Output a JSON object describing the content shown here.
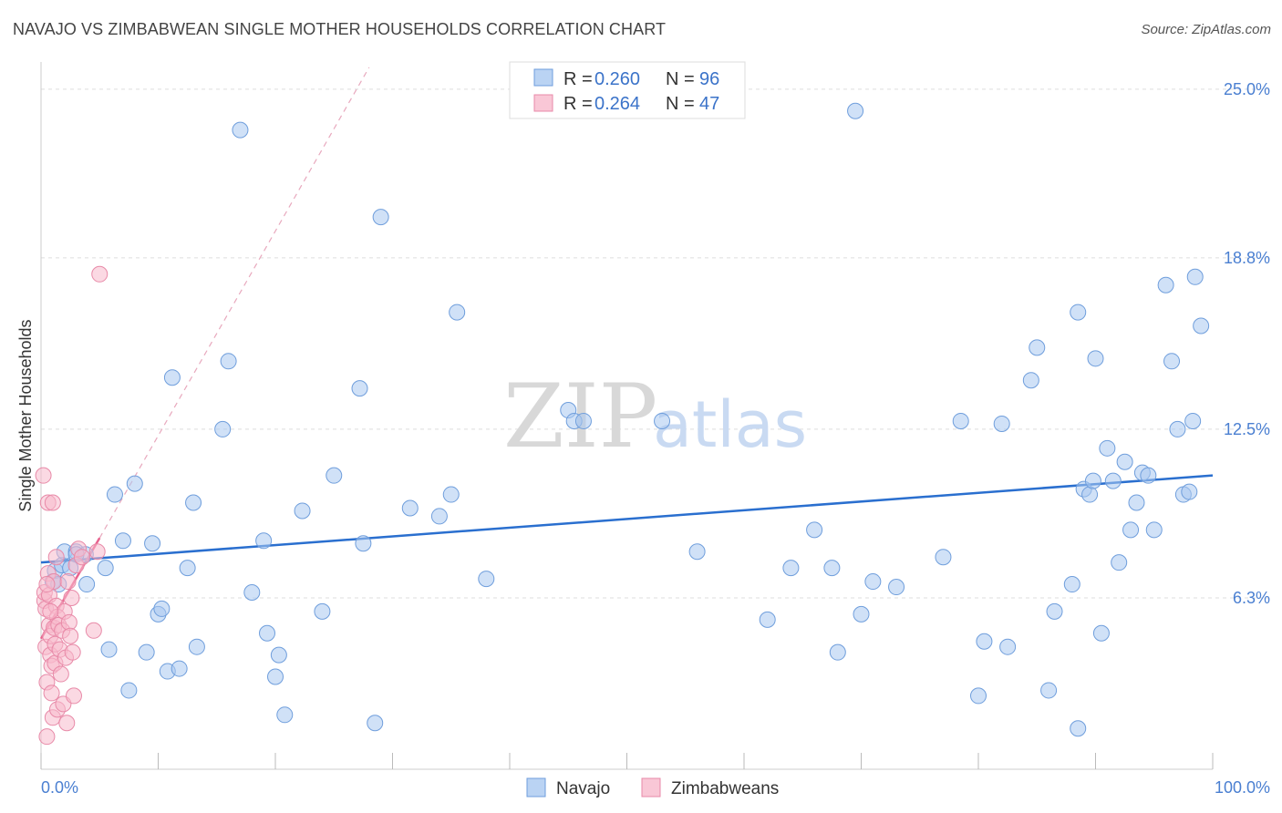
{
  "title": "NAVAJO VS ZIMBABWEAN SINGLE MOTHER HOUSEHOLDS CORRELATION CHART",
  "source": "Source: ZipAtlas.com",
  "watermark": {
    "zip": "ZIP",
    "atlas": "atlas"
  },
  "colors": {
    "navajo_fill": "#a9c8f0",
    "navajo_stroke": "#6f9edc",
    "navajo_line": "#2a6fcf",
    "zimb_fill": "#f7b9cc",
    "zimb_stroke": "#e88aa8",
    "zimb_line": "#e8648f",
    "grid": "#dddddd",
    "tick_label": "#4a7fd1"
  },
  "legend": {
    "items": [
      {
        "r_label": "R = ",
        "r_value": "0.260",
        "n_label": "N = ",
        "n_value": "96"
      },
      {
        "r_label": "R = ",
        "r_value": "0.264",
        "n_label": "N = ",
        "n_value": "47"
      }
    ]
  },
  "bottom_legend": [
    "Navajo",
    "Zimbabweans"
  ],
  "chart_data": {
    "type": "scatter",
    "title": "NAVAJO VS ZIMBABWEAN SINGLE MOTHER HOUSEHOLDS CORRELATION CHART",
    "xlabel": "",
    "ylabel": "Single Mother Households",
    "xlim": [
      0,
      100
    ],
    "ylim": [
      0,
      26
    ],
    "x_tick_labels": [
      "0.0%",
      "100.0%"
    ],
    "y_ticks": [
      6.3,
      12.5,
      18.8,
      25.0
    ],
    "y_tick_labels": [
      "6.3%",
      "12.5%",
      "18.8%",
      "25.0%"
    ],
    "grid": true,
    "legend_position": "top-center",
    "series": [
      {
        "name": "Navajo",
        "r": 0.26,
        "n": 96,
        "trend": {
          "x": [
            0,
            100
          ],
          "y": [
            7.6,
            10.8
          ]
        },
        "points": [
          [
            1.0,
            6.9
          ],
          [
            1.2,
            7.3
          ],
          [
            1.8,
            7.5
          ],
          [
            2.0,
            8.0
          ],
          [
            2.5,
            7.4
          ],
          [
            3.0,
            8.0
          ],
          [
            3.8,
            7.9
          ],
          [
            3.9,
            6.8
          ],
          [
            5.5,
            7.4
          ],
          [
            5.8,
            4.4
          ],
          [
            6.3,
            10.1
          ],
          [
            7.0,
            8.4
          ],
          [
            7.5,
            2.9
          ],
          [
            8.0,
            10.5
          ],
          [
            9.0,
            4.3
          ],
          [
            9.5,
            8.3
          ],
          [
            10.0,
            5.7
          ],
          [
            10.3,
            5.9
          ],
          [
            10.8,
            3.6
          ],
          [
            11.2,
            14.4
          ],
          [
            11.8,
            3.7
          ],
          [
            12.5,
            7.4
          ],
          [
            13.0,
            9.8
          ],
          [
            13.3,
            4.5
          ],
          [
            15.5,
            12.5
          ],
          [
            16.0,
            15.0
          ],
          [
            17.0,
            23.5
          ],
          [
            18.0,
            6.5
          ],
          [
            19.0,
            8.4
          ],
          [
            19.3,
            5.0
          ],
          [
            20.0,
            3.4
          ],
          [
            20.3,
            4.2
          ],
          [
            20.8,
            2.0
          ],
          [
            22.3,
            9.5
          ],
          [
            24.0,
            5.8
          ],
          [
            25.0,
            10.8
          ],
          [
            27.2,
            14.0
          ],
          [
            27.5,
            8.3
          ],
          [
            28.5,
            1.7
          ],
          [
            29.0,
            20.3
          ],
          [
            31.5,
            9.6
          ],
          [
            34.0,
            9.3
          ],
          [
            35.0,
            10.1
          ],
          [
            35.5,
            16.8
          ],
          [
            38.0,
            7.0
          ],
          [
            45.0,
            13.2
          ],
          [
            45.5,
            12.8
          ],
          [
            46.3,
            12.8
          ],
          [
            53.0,
            12.8
          ],
          [
            56.0,
            8.0
          ],
          [
            62.0,
            5.5
          ],
          [
            64.0,
            7.4
          ],
          [
            66.0,
            8.8
          ],
          [
            67.5,
            7.4
          ],
          [
            68.0,
            4.3
          ],
          [
            69.5,
            24.2
          ],
          [
            70.0,
            5.7
          ],
          [
            71.0,
            6.9
          ],
          [
            73.0,
            6.7
          ],
          [
            77.0,
            7.8
          ],
          [
            78.5,
            12.8
          ],
          [
            80.0,
            2.7
          ],
          [
            80.5,
            4.7
          ],
          [
            82.0,
            12.7
          ],
          [
            82.5,
            4.5
          ],
          [
            84.5,
            14.3
          ],
          [
            85.0,
            15.5
          ],
          [
            86.0,
            2.9
          ],
          [
            86.5,
            5.8
          ],
          [
            88.0,
            6.8
          ],
          [
            88.5,
            1.5
          ],
          [
            88.5,
            16.8
          ],
          [
            89.0,
            10.3
          ],
          [
            89.5,
            10.1
          ],
          [
            89.8,
            10.6
          ],
          [
            90.0,
            15.1
          ],
          [
            90.5,
            5.0
          ],
          [
            91.0,
            11.8
          ],
          [
            91.5,
            10.6
          ],
          [
            92.0,
            7.6
          ],
          [
            92.5,
            11.3
          ],
          [
            93.0,
            8.8
          ],
          [
            93.5,
            9.8
          ],
          [
            94.0,
            10.9
          ],
          [
            94.5,
            10.8
          ],
          [
            95.0,
            8.8
          ],
          [
            96.0,
            17.8
          ],
          [
            96.5,
            15.0
          ],
          [
            97.0,
            12.5
          ],
          [
            97.5,
            10.1
          ],
          [
            98.0,
            10.2
          ],
          [
            98.3,
            12.8
          ],
          [
            98.5,
            18.1
          ],
          [
            99.0,
            16.3
          ],
          [
            1.5,
            6.8
          ],
          [
            3.0,
            7.9
          ]
        ]
      },
      {
        "name": "Zimbabweans",
        "r": 0.264,
        "n": 47,
        "trend": {
          "x": [
            0,
            5
          ],
          "y": [
            4.8,
            8.5
          ]
        },
        "trend_extended": {
          "x": [
            5,
            28
          ],
          "y": [
            8.5,
            25.8
          ]
        },
        "points": [
          [
            0.2,
            10.8
          ],
          [
            0.3,
            6.2
          ],
          [
            0.3,
            6.5
          ],
          [
            0.4,
            5.9
          ],
          [
            0.4,
            4.5
          ],
          [
            0.5,
            3.2
          ],
          [
            0.5,
            1.2
          ],
          [
            0.6,
            9.8
          ],
          [
            0.6,
            7.2
          ],
          [
            0.7,
            6.4
          ],
          [
            0.7,
            5.3
          ],
          [
            0.8,
            4.9
          ],
          [
            0.8,
            4.2
          ],
          [
            0.9,
            3.8
          ],
          [
            0.9,
            2.8
          ],
          [
            1.0,
            1.9
          ],
          [
            1.0,
            9.8
          ],
          [
            1.1,
            6.9
          ],
          [
            1.1,
            5.2
          ],
          [
            1.2,
            4.6
          ],
          [
            1.2,
            3.9
          ],
          [
            1.3,
            6.0
          ],
          [
            1.4,
            5.6
          ],
          [
            1.4,
            2.2
          ],
          [
            1.5,
            5.3
          ],
          [
            1.6,
            4.4
          ],
          [
            1.7,
            3.5
          ],
          [
            1.8,
            5.1
          ],
          [
            1.9,
            2.4
          ],
          [
            2.0,
            5.8
          ],
          [
            2.1,
            4.1
          ],
          [
            2.2,
            1.7
          ],
          [
            2.3,
            6.9
          ],
          [
            2.4,
            5.4
          ],
          [
            2.5,
            4.9
          ],
          [
            2.6,
            6.3
          ],
          [
            2.7,
            4.3
          ],
          [
            2.8,
            2.7
          ],
          [
            3.0,
            7.5
          ],
          [
            3.2,
            8.1
          ],
          [
            3.5,
            7.8
          ],
          [
            4.5,
            5.1
          ],
          [
            4.8,
            8.0
          ],
          [
            5.0,
            18.2
          ],
          [
            0.5,
            6.8
          ],
          [
            0.8,
            5.8
          ],
          [
            1.3,
            7.8
          ]
        ]
      }
    ]
  }
}
